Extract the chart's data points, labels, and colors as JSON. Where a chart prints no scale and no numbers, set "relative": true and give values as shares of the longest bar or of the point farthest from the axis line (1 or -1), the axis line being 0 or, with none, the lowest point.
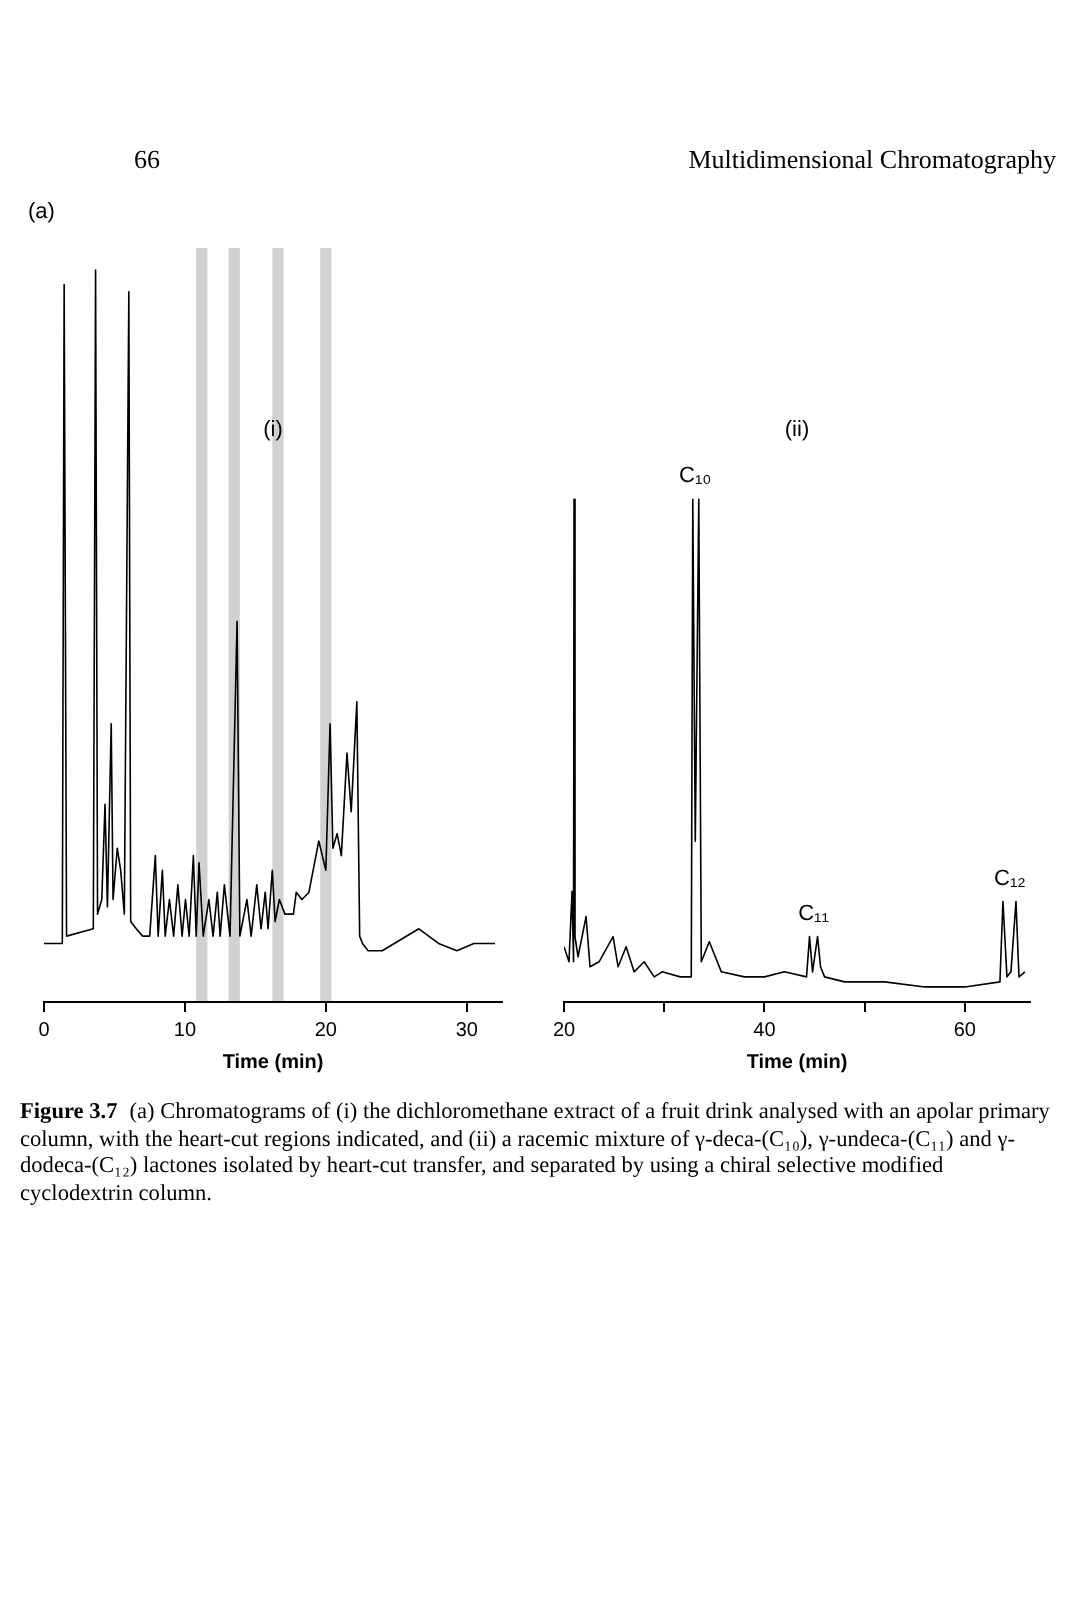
{
  "chart_data": [
    {
      "type": "line",
      "title": "(i)",
      "xlabel": "Time (min)",
      "relative": true,
      "color": "#000000",
      "marker": "none",
      "grid": false,
      "xlim": [
        0,
        32.5
      ],
      "xticks": [
        0,
        10,
        20,
        30
      ],
      "x": [
        0,
        1.3,
        1.43,
        1.6,
        3.5,
        3.66,
        3.8,
        4.1,
        4.33,
        4.5,
        4.77,
        4.9,
        5.2,
        5.44,
        5.7,
        6.02,
        6.15,
        6.55,
        7.0,
        7.5,
        7.9,
        8.1,
        8.4,
        8.6,
        8.9,
        9.2,
        9.5,
        9.8,
        10.04,
        10.3,
        10.6,
        10.8,
        11.0,
        11.3,
        11.7,
        12.0,
        12.3,
        12.5,
        12.8,
        13.2,
        13.7,
        13.9,
        14.4,
        14.7,
        15.1,
        15.4,
        15.7,
        15.9,
        16.2,
        16.4,
        16.7,
        17.1,
        17.5,
        17.7,
        17.9,
        18.3,
        18.8,
        19.5,
        20.0,
        20.3,
        20.5,
        20.8,
        21.1,
        21.5,
        21.8,
        22.2,
        22.4,
        22.6,
        23.0,
        24.0,
        26.6,
        28.0,
        29.3,
        30.5,
        32.0
      ],
      "values": [
        0.08,
        0.08,
        0.98,
        0.09,
        0.1,
        1,
        0.12,
        0.14,
        0.27,
        0.13,
        0.38,
        0.14,
        0.21,
        0.18,
        0.12,
        0.97,
        0.11,
        0.1,
        0.09,
        0.09,
        0.2,
        0.09,
        0.18,
        0.09,
        0.14,
        0.09,
        0.16,
        0.09,
        0.14,
        0.09,
        0.2,
        0.09,
        0.19,
        0.09,
        0.14,
        0.09,
        0.15,
        0.09,
        0.16,
        0.09,
        0.52,
        0.09,
        0.14,
        0.09,
        0.16,
        0.1,
        0.15,
        0.1,
        0.18,
        0.11,
        0.14,
        0.12,
        0.12,
        0.12,
        0.15,
        0.14,
        0.15,
        0.22,
        0.18,
        0.38,
        0.21,
        0.23,
        0.2,
        0.34,
        0.26,
        0.41,
        0.09,
        0.08,
        0.07,
        0.07,
        0.1,
        0.08,
        0.07,
        0.08,
        0.08
      ],
      "bands": [
        {
          "axis": "x",
          "from": 10.8,
          "to": 11.6
        },
        {
          "axis": "x",
          "from": 13.1,
          "to": 13.9
        },
        {
          "axis": "x",
          "from": 16.2,
          "to": 17.0
        },
        {
          "axis": "x",
          "from": 19.6,
          "to": 20.4
        }
      ],
      "annotations": [
        "66",
        "Multidimensional Chromatography",
        "(a)",
        "Figure 3.7",
        "(a) Chromatograms of (i) the dichloromethane extract of a fruit drink analysed with an apolar primary column, with the heart-cut regions indicated, and (ii) a racemic mixture of γ-deca-(C₁₀), γ-undeca-(C₁₁) and γ-dodeca-(C₁₂) lactones isolated by heart-cut transfer, and separated by using a chiral selective modified cyclodextrin column."
      ]
    },
    {
      "type": "line",
      "title": "(ii)",
      "xlabel": "Time (min)",
      "relative": true,
      "color": "#000000",
      "marker": "none",
      "grid": false,
      "xlim": [
        20,
        66.5
      ],
      "xticks": [
        20,
        {
          "value": 30,
          "label": null
        },
        40,
        {
          "value": 50,
          "label": null
        },
        60
      ],
      "x": [
        20,
        20.5,
        20.8,
        20.95,
        21.0,
        21.1,
        21.4,
        22.2,
        22.6,
        23.5,
        24.9,
        25.4,
        26.2,
        27,
        28.0,
        29,
        29.8,
        31.6,
        32.7,
        32.85,
        33.1,
        33.45,
        33.7,
        34.5,
        35.7,
        38,
        40,
        42,
        44.2,
        44.5,
        44.8,
        45.3,
        45.6,
        46,
        48,
        52,
        56,
        60,
        63.5,
        63.8,
        64.2,
        64.6,
        65.1,
        65.4,
        66
      ],
      "values": [
        0.11,
        0.08,
        0.22,
        0.08,
        1,
        0.13,
        0.09,
        0.17,
        0.07,
        0.08,
        0.13,
        0.07,
        0.11,
        0.06,
        0.08,
        0.05,
        0.06,
        0.05,
        0.05,
        1,
        0.32,
        1,
        0.08,
        0.12,
        0.06,
        0.05,
        0.05,
        0.06,
        0.05,
        0.13,
        0.06,
        0.13,
        0.07,
        0.05,
        0.04,
        0.04,
        0.03,
        0.03,
        0.04,
        0.2,
        0.05,
        0.06,
        0.2,
        0.05,
        0.06
      ],
      "annotations": [
        {
          "text": "C₁₀",
          "x": 33.1,
          "y": 1
        },
        {
          "text": "C₁₁",
          "x": 44.9,
          "y": 0.13
        },
        {
          "text": "C₁₂",
          "x": 64.5,
          "y": 0.2
        }
      ]
    }
  ]
}
